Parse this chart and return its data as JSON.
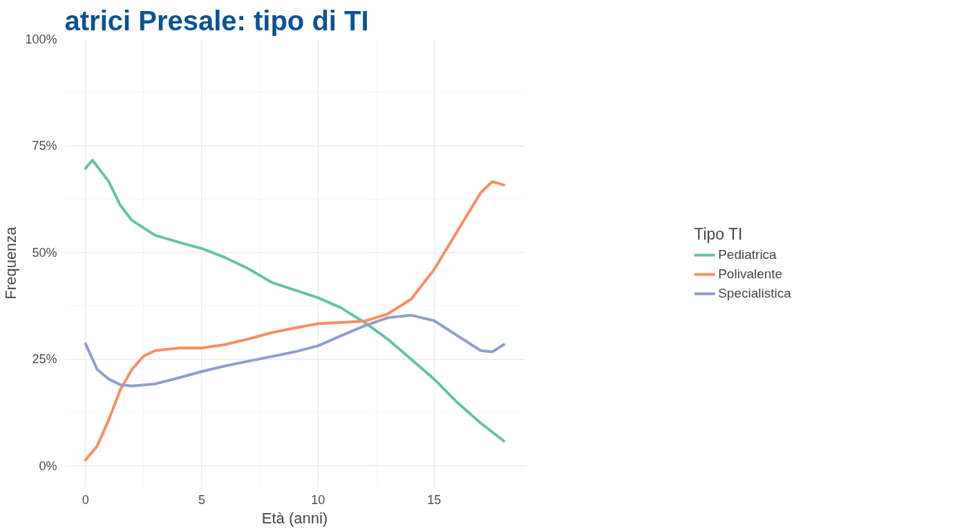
{
  "chart_data": {
    "type": "line",
    "title": "atrici Presale: tipo di TI",
    "xlabel": "Età (anni)",
    "ylabel": "Frequenza",
    "legend_title": "Tipo TI",
    "legend": "right",
    "grid": true,
    "line_style": "solid",
    "xlim": [
      -0.9,
      18.9
    ],
    "xticks": [
      0,
      5,
      10,
      15
    ],
    "ylim": [
      -5,
      100
    ],
    "yticks": [
      {
        "value": 0,
        "label": "0%"
      },
      {
        "value": 25,
        "label": "25%"
      },
      {
        "value": 50,
        "label": "50%"
      },
      {
        "value": 75,
        "label": "75%"
      },
      {
        "value": 100,
        "label": "100%"
      }
    ],
    "series": [
      {
        "name": "Pediatrica",
        "color": "#66c2a5",
        "x": [
          0,
          0.3,
          1,
          1.5,
          2,
          3,
          4,
          5,
          6,
          7,
          8,
          10,
          11,
          12,
          13,
          14,
          15,
          16,
          17,
          18
        ],
        "values": [
          69.7,
          71.6,
          66.6,
          61,
          57.5,
          54,
          52.4,
          50.9,
          48.8,
          46.2,
          43,
          39.4,
          37,
          33.6,
          29.7,
          25,
          20.3,
          14.8,
          10,
          5.8
        ]
      },
      {
        "name": "Polivalente",
        "color": "#fc8d62",
        "x": [
          0,
          0.5,
          1,
          1.5,
          2,
          2.5,
          3,
          4,
          5,
          6,
          7,
          8,
          9,
          10,
          11,
          12,
          13,
          14,
          15,
          16,
          17,
          17.5,
          18
        ],
        "values": [
          1.4,
          4.6,
          10.8,
          17.9,
          22.6,
          25.7,
          27,
          27.6,
          27.6,
          28.4,
          29.7,
          31.2,
          32.3,
          33.3,
          33.6,
          33.9,
          35.6,
          39,
          46,
          55,
          64,
          66.6,
          65.8
        ]
      },
      {
        "name": "Specialistica",
        "color": "#8da0cb",
        "x": [
          0,
          0.5,
          1,
          1.5,
          2,
          3,
          4,
          5,
          6,
          7,
          8,
          9,
          10,
          11,
          12,
          13,
          14,
          15,
          16,
          17,
          17.5,
          18
        ],
        "values": [
          28.6,
          22.6,
          20.3,
          19,
          18.7,
          19.2,
          20.6,
          22.1,
          23.4,
          24.5,
          25.6,
          26.7,
          28.1,
          30.5,
          32.8,
          34.7,
          35.3,
          34,
          30.5,
          27,
          26.7,
          28.4
        ]
      }
    ]
  }
}
